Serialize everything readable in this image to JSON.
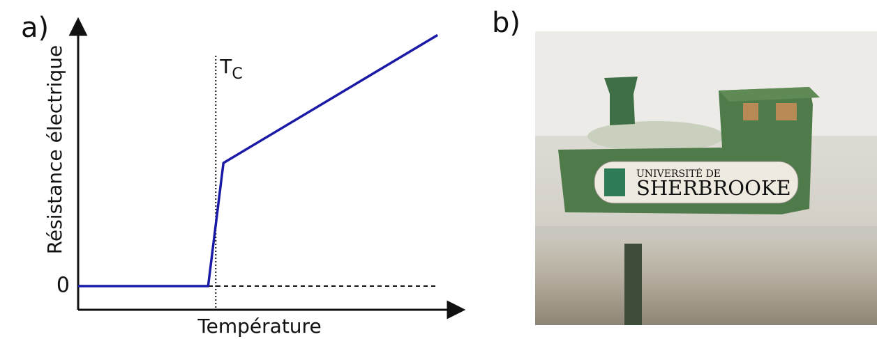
{
  "panel_labels": [
    "a)",
    "b)"
  ],
  "chart_data": {
    "type": "line",
    "ylabel": "Résistance électrique",
    "xlabel": "Température",
    "x": [
      0,
      34,
      38,
      94
    ],
    "series": [
      {
        "color": "#1a1aa6",
        "values": [
          0,
          0,
          52,
          106
        ]
      }
    ],
    "xlim": [
      0,
      100
    ],
    "ylim": [
      -10,
      112
    ],
    "yticks": [
      0
    ],
    "annotations": [
      {
        "x": 36,
        "label": "T",
        "subscript": "C"
      }
    ]
  },
  "photo": {
    "texts": [
      "UNIVERSITÉ DE",
      "SHERBROOKE"
    ]
  }
}
